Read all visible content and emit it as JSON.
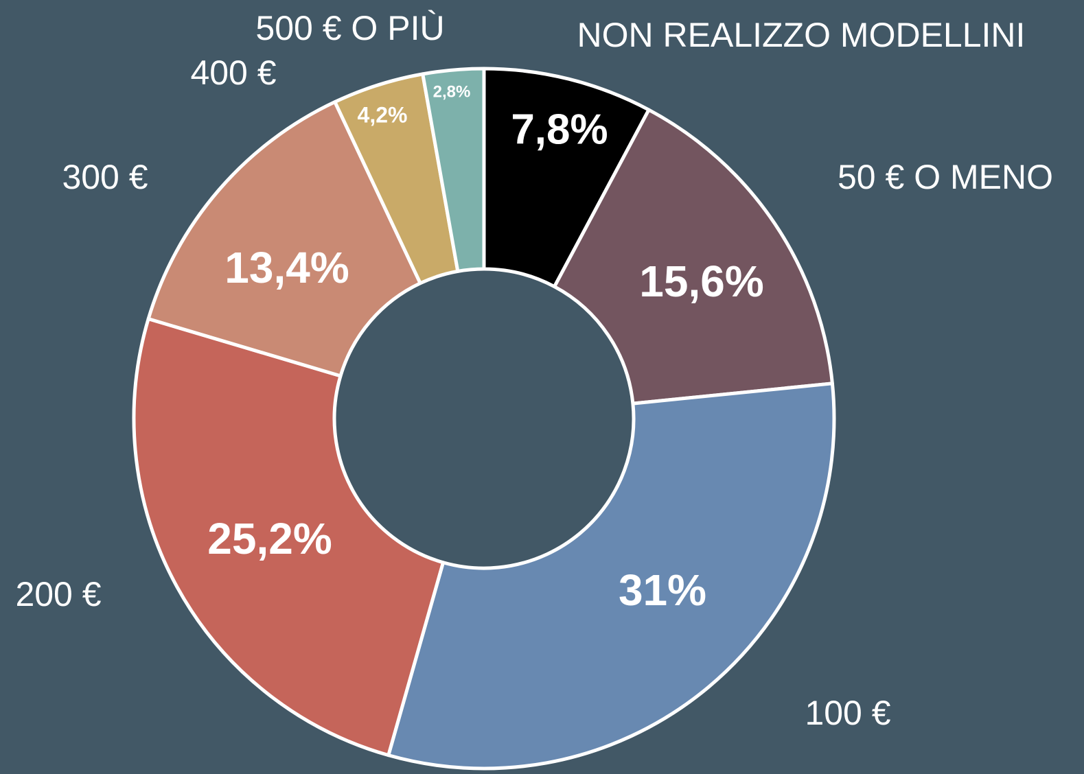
{
  "chart_data": {
    "type": "donut",
    "categories": [
      "NON REALIZZO MODELLINI",
      "50 € O MENO",
      "100 €",
      "200 €",
      "300 €",
      "400 €",
      "500 € O PIÙ"
    ],
    "values": [
      7.8,
      15.6,
      31,
      25.2,
      13.4,
      4.2,
      2.8
    ],
    "value_labels": [
      "7,8%",
      "15,6%",
      "31%",
      "25,2%",
      "13,4%",
      "4,2%",
      "2,8%"
    ],
    "colors": [
      "#000000",
      "#73555f",
      "#6889b1",
      "#c5655a",
      "#c98a74",
      "#c9aa68",
      "#7db1ab"
    ]
  }
}
